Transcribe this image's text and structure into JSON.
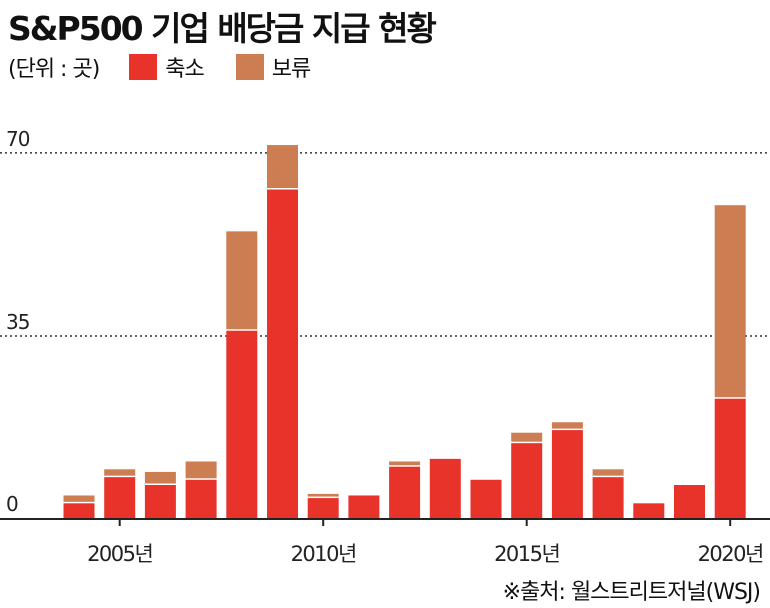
{
  "title": "S&P500 기업 배당금 지급 현황",
  "legend": {
    "unit": "(단위 : 곳)",
    "items": [
      {
        "label": "축소",
        "color": "#e8332b"
      },
      {
        "label": "보류",
        "color": "#cc7d52"
      }
    ]
  },
  "source": "※출처: 월스트리트저널(WSJ)",
  "chart_data": {
    "type": "bar",
    "stacked": true,
    "categories": [
      "2004",
      "2005",
      "2006",
      "2007",
      "2008",
      "2009",
      "2010",
      "2011",
      "2012",
      "2013",
      "2014",
      "2015",
      "2016",
      "2017",
      "2018",
      "2019",
      "2020"
    ],
    "series": [
      {
        "name": "축소",
        "color": "#e8332b",
        "values": [
          3,
          8,
          6.5,
          7.5,
          36,
          63,
          4,
          4.5,
          10,
          11.5,
          7.5,
          14.5,
          17,
          8,
          3,
          6.5,
          23
        ]
      },
      {
        "name": "보류",
        "color": "#cc7d52",
        "values": [
          1.5,
          1.5,
          2.5,
          3.5,
          19,
          8.5,
          0.8,
          0,
          1,
          0,
          0,
          2,
          1.5,
          1.5,
          0,
          0,
          37
        ]
      }
    ],
    "yticks": [
      0,
      35,
      70
    ],
    "ylim": [
      0,
      75
    ],
    "xtick_labels": [
      {
        "category": "2005",
        "label": "2005년"
      },
      {
        "category": "2010",
        "label": "2010년"
      },
      {
        "category": "2015",
        "label": "2015년"
      },
      {
        "category": "2020",
        "label": "2020년"
      }
    ],
    "grid": "dotted horizontal"
  }
}
